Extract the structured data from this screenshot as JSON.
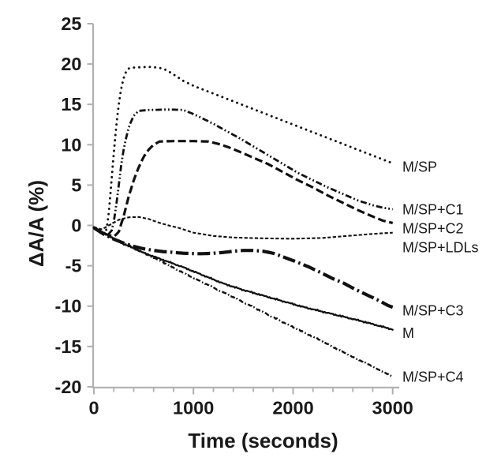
{
  "figure": {
    "kind": "scientific-line-chart",
    "background_color": "#ffffff",
    "axis_color": "#b0b0b0",
    "line_color": "#111111",
    "text_color": "#1a1a1a"
  },
  "labels": {
    "x_axis_title": "Time (seconds)",
    "y_axis_title": "ΔA/A (%)"
  },
  "chart_data": {
    "type": "line",
    "title": "",
    "xlabel": "Time (seconds)",
    "ylabel": "ΔA/A (%)",
    "xlim": [
      0,
      3070
    ],
    "ylim": [
      -20,
      25
    ],
    "x_major_ticks": [
      0,
      1000,
      2000,
      3000
    ],
    "x_minor_tick_interval": 200,
    "y_ticks": [
      25,
      20,
      15,
      10,
      5,
      0,
      -5,
      -10,
      -15,
      -20
    ],
    "grid": "off",
    "legend_position": "labels-at-line-ends",
    "series": [
      {
        "name": "M/SP",
        "line_style": "dotted",
        "dash": [
          0.1,
          6.6
        ],
        "width": 2.9,
        "linecap": "round",
        "noise": 0,
        "label_v": 7.3,
        "points": [
          [
            0,
            -0.3
          ],
          [
            60,
            -0.7
          ],
          [
            100,
            -1.0
          ],
          [
            120,
            -0.8
          ],
          [
            140,
            0.5
          ],
          [
            160,
            3
          ],
          [
            180,
            6
          ],
          [
            200,
            9
          ],
          [
            220,
            11.8
          ],
          [
            240,
            14
          ],
          [
            260,
            15.9
          ],
          [
            280,
            17.3
          ],
          [
            300,
            18.3
          ],
          [
            320,
            19
          ],
          [
            340,
            19.4
          ],
          [
            380,
            19.55
          ],
          [
            450,
            19.6
          ],
          [
            550,
            19.65
          ],
          [
            650,
            19.55
          ],
          [
            700,
            19.4
          ],
          [
            750,
            19.1
          ],
          [
            800,
            18.7
          ],
          [
            850,
            18.3
          ],
          [
            900,
            17.9
          ],
          [
            1000,
            17.3
          ],
          [
            1250,
            16.1
          ],
          [
            1500,
            14.9
          ],
          [
            1750,
            13.7
          ],
          [
            2000,
            12.5
          ],
          [
            2250,
            11.3
          ],
          [
            2500,
            10.1
          ],
          [
            2750,
            8.9
          ],
          [
            3000,
            7.7
          ]
        ]
      },
      {
        "name": "M/SP+C1",
        "line_style": "dash-dot-dot",
        "dash": [
          8,
          3,
          1.8,
          3,
          1.8,
          3
        ],
        "width": 2.8,
        "linecap": "butt",
        "noise": 0,
        "label_v": 2.0,
        "points": [
          [
            0,
            -0.3
          ],
          [
            80,
            -0.9
          ],
          [
            140,
            -1.2
          ],
          [
            180,
            -0.6
          ],
          [
            200,
            0.5
          ],
          [
            230,
            3
          ],
          [
            250,
            5
          ],
          [
            280,
            8
          ],
          [
            300,
            9.5
          ],
          [
            330,
            11.2
          ],
          [
            360,
            12.5
          ],
          [
            400,
            13.6
          ],
          [
            450,
            14.2
          ],
          [
            550,
            14.3
          ],
          [
            700,
            14.35
          ],
          [
            800,
            14.35
          ],
          [
            900,
            14.3
          ],
          [
            1000,
            13.8
          ],
          [
            1100,
            13.2
          ],
          [
            1200,
            12.6
          ],
          [
            1300,
            11.9
          ],
          [
            1450,
            10.9
          ],
          [
            1600,
            9.8
          ],
          [
            1750,
            8.7
          ],
          [
            1900,
            7.6
          ],
          [
            2050,
            6.5
          ],
          [
            2200,
            5.6
          ],
          [
            2350,
            4.7
          ],
          [
            2500,
            3.9
          ],
          [
            2650,
            3.1
          ],
          [
            2800,
            2.5
          ],
          [
            2900,
            2.2
          ],
          [
            3000,
            2.0
          ]
        ]
      },
      {
        "name": "M/SP+C2",
        "line_style": "dashed",
        "dash": [
          10,
          4.5
        ],
        "width": 3.2,
        "linecap": "butt",
        "noise": 0,
        "label_v": -0.35,
        "points": [
          [
            0,
            -0.3
          ],
          [
            100,
            -1.0
          ],
          [
            200,
            -1.4
          ],
          [
            250,
            -0.8
          ],
          [
            300,
            1.2
          ],
          [
            350,
            3.6
          ],
          [
            400,
            5.6
          ],
          [
            450,
            7.2
          ],
          [
            500,
            8.5
          ],
          [
            550,
            9.4
          ],
          [
            600,
            10
          ],
          [
            660,
            10.4
          ],
          [
            800,
            10.45
          ],
          [
            1000,
            10.45
          ],
          [
            1150,
            10.4
          ],
          [
            1250,
            10.1
          ],
          [
            1350,
            9.7
          ],
          [
            1450,
            9.2
          ],
          [
            1600,
            8.4
          ],
          [
            1750,
            7.6
          ],
          [
            1900,
            6.6
          ],
          [
            2050,
            5.6
          ],
          [
            2200,
            4.7
          ],
          [
            2350,
            3.7
          ],
          [
            2500,
            2.8
          ],
          [
            2650,
            1.9
          ],
          [
            2800,
            1.1
          ],
          [
            2900,
            0.6
          ],
          [
            3000,
            0.3
          ]
        ]
      },
      {
        "name": "M/SP+LDLs",
        "line_style": "short-dash",
        "dash": [
          4.2,
          2.4
        ],
        "width": 2.1,
        "linecap": "butt",
        "noise": 0,
        "label_v": -2.7,
        "points": [
          [
            0,
            -0.2
          ],
          [
            80,
            -0.5
          ],
          [
            150,
            0
          ],
          [
            250,
            0.7
          ],
          [
            350,
            1.0
          ],
          [
            450,
            1.05
          ],
          [
            550,
            0.8
          ],
          [
            650,
            0.35
          ],
          [
            750,
            0
          ],
          [
            850,
            -0.3
          ],
          [
            1000,
            -0.9
          ],
          [
            1200,
            -1.3
          ],
          [
            1400,
            -1.5
          ],
          [
            1700,
            -1.6
          ],
          [
            2000,
            -1.65
          ],
          [
            2300,
            -1.55
          ],
          [
            2600,
            -1.25
          ],
          [
            2800,
            -1.05
          ],
          [
            3000,
            -0.9
          ]
        ]
      },
      {
        "name": "M/SP+C3",
        "line_style": "bold-dash-dot",
        "dash": [
          16,
          4.5,
          2.5,
          4.5
        ],
        "width": 4.2,
        "linecap": "butt",
        "noise": 0,
        "label_v": -10.5,
        "points": [
          [
            0,
            -0.3
          ],
          [
            100,
            -1.1
          ],
          [
            200,
            -1.7
          ],
          [
            300,
            -2.2
          ],
          [
            400,
            -2.6
          ],
          [
            500,
            -2.9
          ],
          [
            600,
            -3.1
          ],
          [
            700,
            -3.25
          ],
          [
            800,
            -3.35
          ],
          [
            900,
            -3.45
          ],
          [
            1000,
            -3.5
          ],
          [
            1100,
            -3.5
          ],
          [
            1200,
            -3.45
          ],
          [
            1300,
            -3.35
          ],
          [
            1400,
            -3.2
          ],
          [
            1500,
            -3.1
          ],
          [
            1600,
            -3.1
          ],
          [
            1700,
            -3.2
          ],
          [
            1800,
            -3.45
          ],
          [
            1900,
            -3.9
          ],
          [
            2030,
            -4.5
          ],
          [
            2150,
            -5.1
          ],
          [
            2270,
            -5.8
          ],
          [
            2400,
            -6.6
          ],
          [
            2500,
            -7.1
          ],
          [
            2620,
            -7.9
          ],
          [
            2740,
            -8.6
          ],
          [
            2860,
            -9.3
          ],
          [
            2950,
            -9.9
          ],
          [
            3000,
            -10.15
          ]
        ]
      },
      {
        "name": "M",
        "line_style": "solid",
        "dash": null,
        "width": 2.3,
        "linecap": "round",
        "noise": 1.1,
        "label_v": -13.3,
        "points": [
          [
            0,
            -0.2
          ],
          [
            150,
            -1.3
          ],
          [
            300,
            -2.3
          ],
          [
            500,
            -3.4
          ],
          [
            700,
            -4.3
          ],
          [
            900,
            -5.2
          ],
          [
            1100,
            -6.2
          ],
          [
            1300,
            -7.2
          ],
          [
            1500,
            -8.0
          ],
          [
            1700,
            -8.7
          ],
          [
            1900,
            -9.4
          ],
          [
            2100,
            -10.1
          ],
          [
            2300,
            -10.7
          ],
          [
            2500,
            -11.3
          ],
          [
            2700,
            -11.9
          ],
          [
            2850,
            -12.4
          ],
          [
            3000,
            -12.9
          ]
        ]
      },
      {
        "name": "M/SP+C4",
        "line_style": "dash-dot",
        "dash": [
          6,
          2.6,
          1.6,
          2.6
        ],
        "width": 2.4,
        "linecap": "butt",
        "noise": 0.9,
        "label_v": -18.75,
        "points": [
          [
            0,
            -0.3
          ],
          [
            150,
            -1.3
          ],
          [
            300,
            -2.2
          ],
          [
            500,
            -3.4
          ],
          [
            700,
            -4.6
          ],
          [
            900,
            -5.9
          ],
          [
            1100,
            -7.1
          ],
          [
            1300,
            -8.3
          ],
          [
            1500,
            -9.5
          ],
          [
            1700,
            -10.75
          ],
          [
            1900,
            -12.0
          ],
          [
            2100,
            -13.2
          ],
          [
            2300,
            -14.4
          ],
          [
            2500,
            -15.7
          ],
          [
            2700,
            -16.9
          ],
          [
            2850,
            -17.8
          ],
          [
            3000,
            -18.75
          ]
        ]
      }
    ]
  }
}
